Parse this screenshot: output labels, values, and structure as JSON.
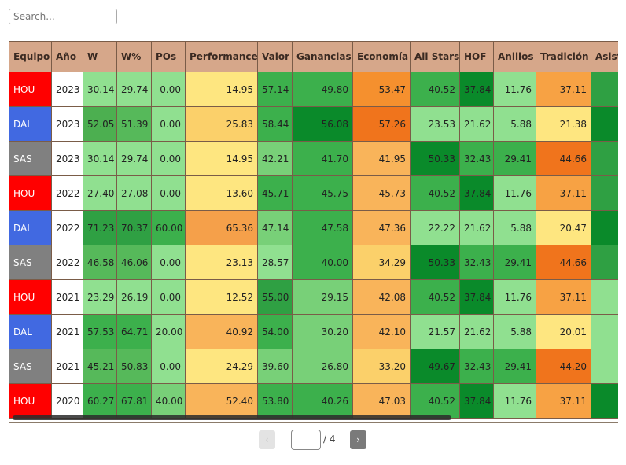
{
  "search": {
    "placeholder": "Search..."
  },
  "colors": {
    "HOU": "#ff0000",
    "DAL": "#4169e1",
    "SAS": "#808080",
    "header_bg": "#d6a78a"
  },
  "table": {
    "columns": [
      "Equipo",
      "Año",
      "W",
      "W%",
      "POs",
      "Performance",
      "Valor",
      "Ganancias",
      "Economía",
      "All Stars",
      "HOF",
      "Anillos",
      "Tradición",
      "Asist"
    ],
    "rows": [
      [
        "HOU",
        "2023",
        "30.14",
        "29.74",
        "0.00",
        "14.95",
        "57.14",
        "49.80",
        "53.47",
        "40.52",
        "37.84",
        "11.76",
        "37.11",
        ""
      ],
      [
        "DAL",
        "2023",
        "52.05",
        "51.39",
        "0.00",
        "25.83",
        "58.44",
        "56.08",
        "57.26",
        "23.53",
        "21.62",
        "5.88",
        "21.38",
        ""
      ],
      [
        "SAS",
        "2023",
        "30.14",
        "29.74",
        "0.00",
        "14.95",
        "42.21",
        "41.70",
        "41.95",
        "50.33",
        "32.43",
        "29.41",
        "44.66",
        ""
      ],
      [
        "HOU",
        "2022",
        "27.40",
        "27.08",
        "0.00",
        "13.60",
        "45.71",
        "45.75",
        "45.73",
        "40.52",
        "37.84",
        "11.76",
        "37.11",
        ""
      ],
      [
        "DAL",
        "2022",
        "71.23",
        "70.37",
        "60.00",
        "65.36",
        "47.14",
        "47.58",
        "47.36",
        "22.22",
        "21.62",
        "5.88",
        "20.47",
        ""
      ],
      [
        "SAS",
        "2022",
        "46.58",
        "46.06",
        "0.00",
        "23.13",
        "28.57",
        "40.00",
        "34.29",
        "50.33",
        "32.43",
        "29.41",
        "44.66",
        ""
      ],
      [
        "HOU",
        "2021",
        "23.29",
        "26.19",
        "0.00",
        "12.52",
        "55.00",
        "29.15",
        "42.08",
        "40.52",
        "37.84",
        "11.76",
        "37.11",
        ""
      ],
      [
        "DAL",
        "2021",
        "57.53",
        "64.71",
        "20.00",
        "40.92",
        "54.00",
        "30.20",
        "42.10",
        "21.57",
        "21.62",
        "5.88",
        "20.01",
        ""
      ],
      [
        "SAS",
        "2021",
        "45.21",
        "50.83",
        "0.00",
        "24.29",
        "39.60",
        "26.80",
        "33.20",
        "49.67",
        "32.43",
        "29.41",
        "44.20",
        ""
      ],
      [
        "HOU",
        "2020",
        "60.27",
        "67.81",
        "40.00",
        "52.40",
        "53.80",
        "40.26",
        "47.03",
        "40.52",
        "37.84",
        "11.76",
        "37.11",
        ""
      ]
    ],
    "cell_colors": [
      [
        "#ff0000",
        "#ffffff",
        "#90e090",
        "#90e090",
        "#90e090",
        "#fee680",
        "#3cb04c",
        "#3cb04c",
        "#f5902e",
        "#3cb04c",
        "#0a8a2a",
        "#90e090",
        "#f7a244",
        "#2fa043"
      ],
      [
        "#4169e1",
        "#ffffff",
        "#4caf50",
        "#56b95a",
        "#90e090",
        "#fbd06a",
        "#3cb04c",
        "#0a8a2a",
        "#f0741c",
        "#90e090",
        "#90e090",
        "#90e090",
        "#fee680",
        "#0a8a2a"
      ],
      [
        "#808080",
        "#ffffff",
        "#90e090",
        "#90e090",
        "#90e090",
        "#fee680",
        "#78d078",
        "#3cb04c",
        "#f9b45a",
        "#0a8a2a",
        "#3cb04c",
        "#3cb04c",
        "#f0741c",
        "#2fa043"
      ],
      [
        "#ff0000",
        "#ffffff",
        "#90e090",
        "#90e090",
        "#90e090",
        "#fee680",
        "#3cb04c",
        "#3cb04c",
        "#f9b45a",
        "#3cb04c",
        "#0a8a2a",
        "#90e090",
        "#f7a244",
        "#2fa043"
      ],
      [
        "#4169e1",
        "#ffffff",
        "#2fa043",
        "#2fa043",
        "#3cb04c",
        "#f5a04a",
        "#78d078",
        "#3cb04c",
        "#f9b45a",
        "#90e090",
        "#90e090",
        "#90e090",
        "#fee680",
        "#0a8a2a"
      ],
      [
        "#808080",
        "#ffffff",
        "#56b95a",
        "#56b95a",
        "#90e090",
        "#fee680",
        "#90e090",
        "#3cb04c",
        "#fbd06a",
        "#0a8a2a",
        "#3cb04c",
        "#3cb04c",
        "#f0741c",
        "#2fa043"
      ],
      [
        "#ff0000",
        "#ffffff",
        "#90e090",
        "#90e090",
        "#90e090",
        "#fee680",
        "#2fa043",
        "#78d078",
        "#f9b45a",
        "#3cb04c",
        "#0a8a2a",
        "#90e090",
        "#f7a244",
        "#90e090"
      ],
      [
        "#4169e1",
        "#ffffff",
        "#3cb04c",
        "#3cb04c",
        "#90e090",
        "#f9b45a",
        "#3cb04c",
        "#78d078",
        "#f9b45a",
        "#90e090",
        "#90e090",
        "#90e090",
        "#fee680",
        "#90e090"
      ],
      [
        "#808080",
        "#ffffff",
        "#56b95a",
        "#56b95a",
        "#90e090",
        "#fee680",
        "#78d078",
        "#78d078",
        "#fbd06a",
        "#0a8a2a",
        "#3cb04c",
        "#3cb04c",
        "#f0741c",
        "#90e090"
      ],
      [
        "#ff0000",
        "#ffffff",
        "#3cb04c",
        "#3cb04c",
        "#78d078",
        "#f9b45a",
        "#3cb04c",
        "#3cb04c",
        "#f9b45a",
        "#3cb04c",
        "#0a8a2a",
        "#90e090",
        "#f7a244",
        "#0a8a2a"
      ]
    ]
  },
  "pagination": {
    "prev_label": "‹",
    "next_label": "›",
    "current_page": "",
    "total_label": "/ 4"
  }
}
